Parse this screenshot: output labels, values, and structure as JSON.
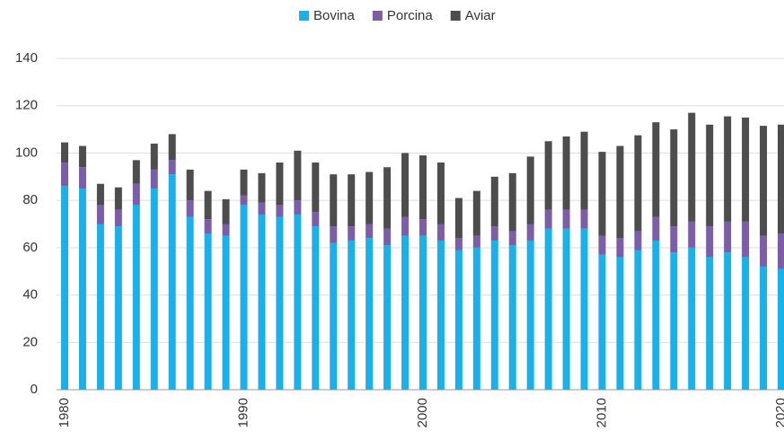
{
  "chart_data": {
    "type": "stacked_bar",
    "categories": [
      "1980",
      null,
      null,
      null,
      null,
      null,
      null,
      null,
      null,
      null,
      "1990",
      null,
      null,
      null,
      null,
      null,
      null,
      null,
      null,
      null,
      "2000",
      null,
      null,
      null,
      null,
      null,
      null,
      null,
      null,
      null,
      "2010",
      null,
      null,
      null,
      null,
      null,
      null,
      null,
      null,
      null,
      "2020"
    ],
    "series": [
      {
        "name": "Bovina",
        "color": "#1ab0ea",
        "values": [
          86,
          85,
          70,
          69,
          78,
          85,
          91,
          73,
          66,
          65,
          78,
          74,
          73,
          74,
          69,
          62,
          63,
          64,
          61,
          65,
          65,
          63,
          59,
          60,
          63,
          61,
          63,
          68,
          68,
          68,
          57,
          56,
          59,
          63,
          58,
          60,
          56,
          58,
          56,
          52,
          51
        ]
      },
      {
        "name": "Porcina",
        "color": "#7b5ea7",
        "values": [
          10,
          9,
          8,
          7,
          9,
          8,
          6,
          7,
          6,
          5,
          4,
          5,
          5,
          6,
          6,
          7,
          6,
          6,
          7,
          8,
          7,
          7,
          5,
          5,
          6,
          6,
          7,
          8,
          8,
          8,
          8,
          8,
          8,
          10,
          11,
          11,
          13,
          13,
          15,
          13,
          15
        ]
      },
      {
        "name": "Aviar",
        "color": "#4d4d4d",
        "values": [
          8.5,
          9,
          9,
          9.5,
          10,
          11,
          11,
          13,
          12,
          10.5,
          11,
          12.5,
          18,
          21,
          21,
          22,
          22,
          22,
          26,
          27,
          27,
          26,
          17,
          19,
          21,
          24.5,
          28.5,
          29,
          31,
          33,
          35.5,
          39,
          40.5,
          40,
          41,
          46,
          43,
          44.5,
          44,
          46.5,
          46
        ]
      }
    ],
    "ylim": [
      0,
      140
    ],
    "yticks": [
      0,
      20,
      40,
      60,
      80,
      100,
      120,
      140
    ],
    "grid": true,
    "legend": "top"
  }
}
